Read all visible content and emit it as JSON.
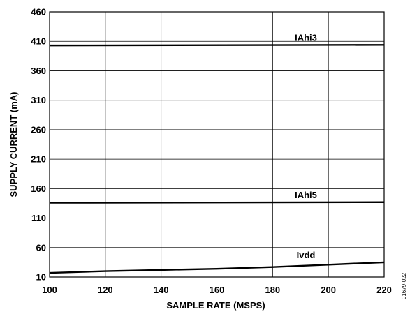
{
  "chart_data": {
    "type": "line",
    "xlabel": "SAMPLE RATE (MSPS)",
    "ylabel": "SUPPLY CURRENT (mA)",
    "x_ticks": [
      100,
      120,
      140,
      160,
      180,
      200,
      220
    ],
    "y_ticks": [
      10,
      60,
      110,
      160,
      210,
      260,
      310,
      360,
      410,
      460
    ],
    "xlim": [
      100,
      220
    ],
    "ylim": [
      10,
      460
    ],
    "grid": true,
    "series": [
      {
        "name": "IAhi3",
        "x": [
          100,
          220
        ],
        "y": [
          403,
          404
        ]
      },
      {
        "name": "IAhi5",
        "x": [
          100,
          220
        ],
        "y": [
          136,
          137
        ]
      },
      {
        "name": "Ivdd",
        "x": [
          100,
          120,
          140,
          160,
          180,
          200,
          220
        ],
        "y": [
          17,
          20,
          22,
          24,
          27,
          31,
          35
        ]
      }
    ],
    "figure_id": "01679-022"
  }
}
